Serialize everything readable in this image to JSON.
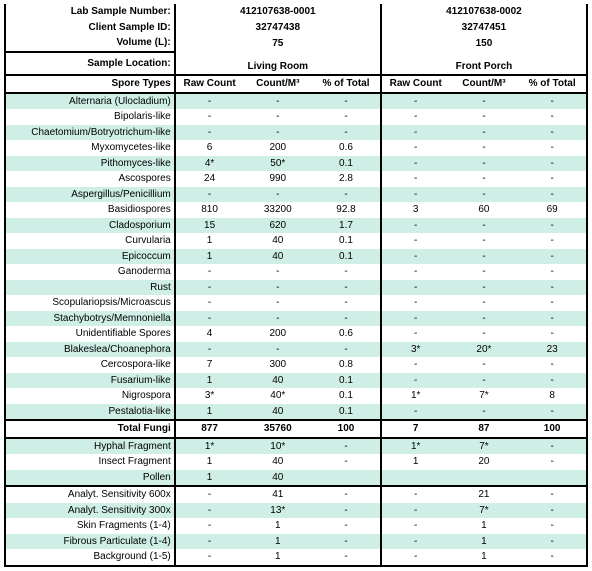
{
  "colors": {
    "alt_row": "#cfeee6",
    "border": "#000000",
    "bg": "#ffffff"
  },
  "header": {
    "labels": [
      "Lab Sample Number:",
      "Client Sample ID:",
      "Volume (L):",
      "Sample Location:"
    ],
    "samples": [
      {
        "lab": "412107638-0001",
        "client": "32747438",
        "vol": "75",
        "loc": "Living Room"
      },
      {
        "lab": "412107638-0002",
        "client": "32747451",
        "vol": "150",
        "loc": "Front Porch"
      }
    ]
  },
  "columns": {
    "spore": "Spore Types",
    "raw": "Raw Count",
    "cm3": "Count/M³",
    "pct": "% of Total"
  },
  "rows": [
    {
      "l": "Alternaria (Ulocladium)",
      "a": [
        "-",
        "-",
        "-"
      ],
      "b": [
        "-",
        "-",
        "-"
      ],
      "alt": true
    },
    {
      "l": "Bipolaris-like",
      "a": [
        "-",
        "-",
        "-"
      ],
      "b": [
        "-",
        "-",
        "-"
      ]
    },
    {
      "l": "Chaetomium/Botryotrichum-like",
      "a": [
        "-",
        "-",
        "-"
      ],
      "b": [
        "-",
        "-",
        "-"
      ],
      "alt": true
    },
    {
      "l": "Myxomycetes-like",
      "a": [
        "6",
        "200",
        "0.6"
      ],
      "b": [
        "-",
        "-",
        "-"
      ]
    },
    {
      "l": "Pithomyces-like",
      "a": [
        "4*",
        "50*",
        "0.1"
      ],
      "b": [
        "-",
        "-",
        "-"
      ],
      "alt": true
    },
    {
      "l": "Ascospores",
      "a": [
        "24",
        "990",
        "2.8"
      ],
      "b": [
        "-",
        "-",
        "-"
      ]
    },
    {
      "l": "Aspergillus/Penicillium",
      "a": [
        "-",
        "-",
        "-"
      ],
      "b": [
        "-",
        "-",
        "-"
      ],
      "alt": true
    },
    {
      "l": "Basidiospores",
      "a": [
        "810",
        "33200",
        "92.8"
      ],
      "b": [
        "3",
        "60",
        "69"
      ]
    },
    {
      "l": "Cladosporium",
      "a": [
        "15",
        "620",
        "1.7"
      ],
      "b": [
        "-",
        "-",
        "-"
      ],
      "alt": true
    },
    {
      "l": "Curvularia",
      "a": [
        "1",
        "40",
        "0.1"
      ],
      "b": [
        "-",
        "-",
        "-"
      ]
    },
    {
      "l": "Epicoccum",
      "a": [
        "1",
        "40",
        "0.1"
      ],
      "b": [
        "-",
        "-",
        "-"
      ],
      "alt": true
    },
    {
      "l": "Ganoderma",
      "a": [
        "-",
        "-",
        "-"
      ],
      "b": [
        "-",
        "-",
        "-"
      ]
    },
    {
      "l": "Rust",
      "a": [
        "-",
        "-",
        "-"
      ],
      "b": [
        "-",
        "-",
        "-"
      ],
      "alt": true
    },
    {
      "l": "Scopulariopsis/Microascus",
      "a": [
        "-",
        "-",
        "-"
      ],
      "b": [
        "-",
        "-",
        "-"
      ]
    },
    {
      "l": "Stachybotrys/Memnoniella",
      "a": [
        "-",
        "-",
        "-"
      ],
      "b": [
        "-",
        "-",
        "-"
      ],
      "alt": true
    },
    {
      "l": "Unidentifiable Spores",
      "a": [
        "4",
        "200",
        "0.6"
      ],
      "b": [
        "-",
        "-",
        "-"
      ]
    },
    {
      "l": "Blakeslea/Choanephora",
      "a": [
        "-",
        "-",
        "-"
      ],
      "b": [
        "3*",
        "20*",
        "23"
      ],
      "alt": true
    },
    {
      "l": "Cercospora-like",
      "a": [
        "7",
        "300",
        "0.8"
      ],
      "b": [
        "-",
        "-",
        "-"
      ]
    },
    {
      "l": "Fusarium-like",
      "a": [
        "1",
        "40",
        "0.1"
      ],
      "b": [
        "-",
        "-",
        "-"
      ],
      "alt": true
    },
    {
      "l": "Nigrospora",
      "a": [
        "3*",
        "40*",
        "0.1"
      ],
      "b": [
        "1*",
        "7*",
        "8"
      ]
    },
    {
      "l": "Pestalotia-like",
      "a": [
        "1",
        "40",
        "0.1"
      ],
      "b": [
        "-",
        "-",
        "-"
      ],
      "alt": true
    }
  ],
  "total": {
    "l": "Total Fungi",
    "a": [
      "877",
      "35760",
      "100"
    ],
    "b": [
      "7",
      "87",
      "100"
    ]
  },
  "post_rows": [
    {
      "l": "Hyphal Fragment",
      "a": [
        "1*",
        "10*",
        "-"
      ],
      "b": [
        "1*",
        "7*",
        "-"
      ],
      "alt": true
    },
    {
      "l": "Insect Fragment",
      "a": [
        "1",
        "40",
        "-"
      ],
      "b": [
        "1",
        "20",
        "-"
      ]
    },
    {
      "l": "Pollen",
      "a": [
        "1",
        "40",
        ""
      ],
      "b": [
        "",
        "",
        ""
      ],
      "alt": true
    }
  ],
  "analyt_rows": [
    {
      "l": "Analyt. Sensitivity 600x",
      "a": [
        "-",
        "41",
        "-"
      ],
      "b": [
        "-",
        "21",
        "-"
      ]
    },
    {
      "l": "Analyt. Sensitivity 300x",
      "a": [
        "-",
        "13*",
        "-"
      ],
      "b": [
        "-",
        "7*",
        "-"
      ],
      "alt": true
    },
    {
      "l": "Skin Fragments (1-4)",
      "a": [
        "-",
        "1",
        "-"
      ],
      "b": [
        "-",
        "1",
        "-"
      ]
    },
    {
      "l": "Fibrous Particulate (1-4)",
      "a": [
        "-",
        "1",
        "-"
      ],
      "b": [
        "-",
        "1",
        "-"
      ],
      "alt": true
    },
    {
      "l": "Background (1-5)",
      "a": [
        "-",
        "1",
        "-"
      ],
      "b": [
        "-",
        "1",
        "-"
      ]
    }
  ]
}
